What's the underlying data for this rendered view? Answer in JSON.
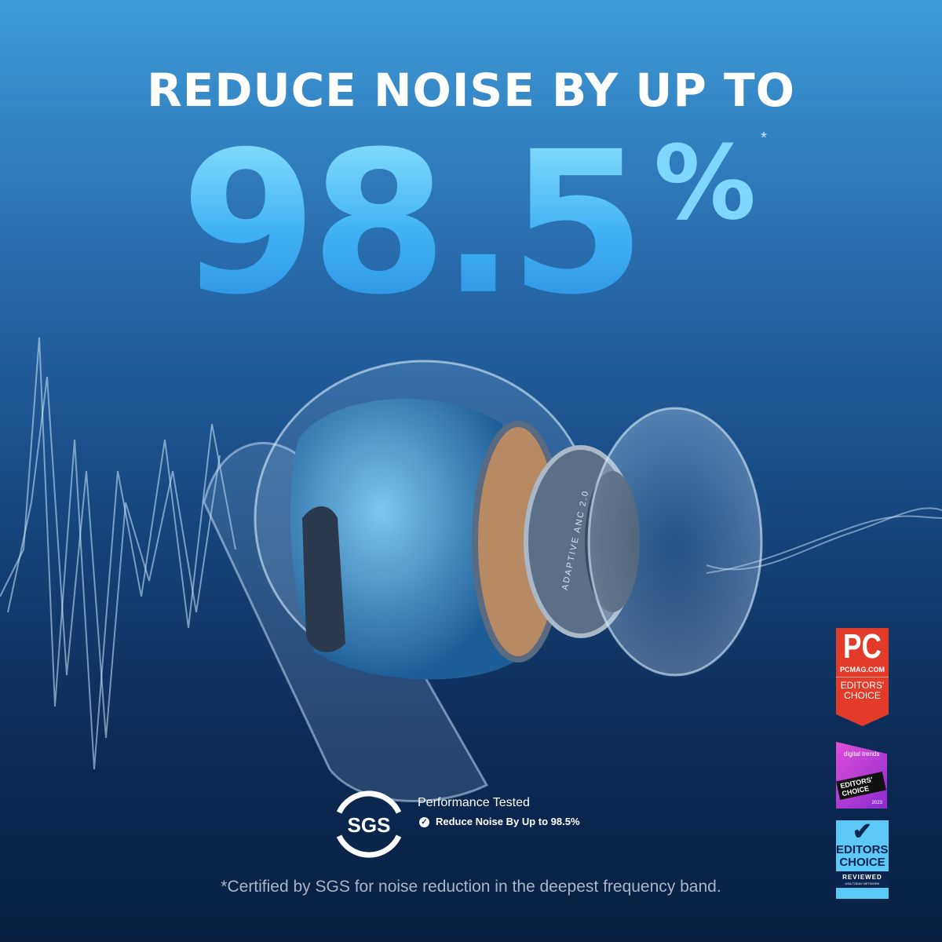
{
  "headline": "REDUCE NOISE BY UP TO",
  "big_number": "98.5",
  "percent_sign": "%",
  "asterisk": "*",
  "product_label": "ADAPTIVE ANC 2.0",
  "certification": {
    "logo": "SGS",
    "title": "Performance Tested",
    "check_icon": "check-circle-icon",
    "claim": "Reduce Noise By Up to 98.5%"
  },
  "footnote": "*Certified by SGS for noise reduction in the deepest frequency band.",
  "badges": [
    {
      "logo": "PC",
      "site": "PCMAG.COM",
      "award": "EDITORS' CHOICE",
      "color": "#e23b2a"
    },
    {
      "logo": "digital trends",
      "award": "EDITORS' CHOICE",
      "year": "2023",
      "color": "#c23fd6"
    },
    {
      "award": "EDITORS' CHOICE",
      "sub": "REVIEWED",
      "network": "USA TODAY NETWORK",
      "color": "#5bc8f5"
    }
  ],
  "colors": {
    "accent": "#3fb2f2",
    "background_top": "#3f9bd8",
    "background_bottom": "#081f42"
  }
}
